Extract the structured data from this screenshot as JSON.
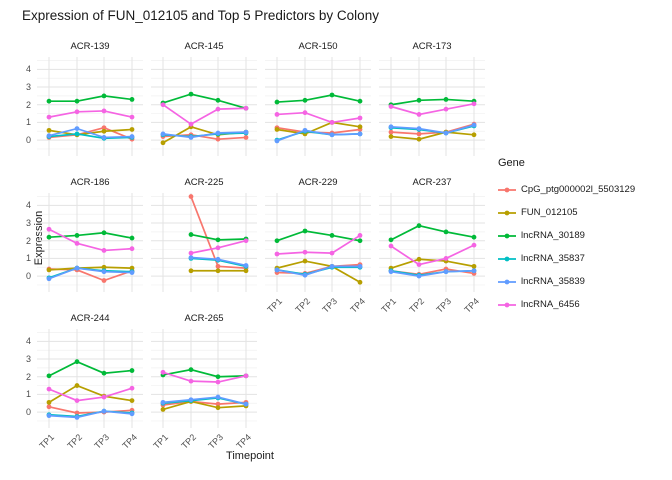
{
  "title": "Expression of FUN_012105 and Top 5 Predictors by Colony",
  "axes": {
    "x_title": "Timepoint",
    "y_title": "Expression",
    "x_ticks": [
      "TP1",
      "TP2",
      "TP3",
      "TP4"
    ],
    "y_ticks": [
      0,
      1,
      2,
      3,
      4
    ]
  },
  "legend": {
    "title": "Gene",
    "entries": [
      {
        "label": "CpG_ptg000002l_5503129",
        "color": "#F8766D"
      },
      {
        "label": "FUN_012105",
        "color": "#B79F00"
      },
      {
        "label": "lncRNA_30189",
        "color": "#00BA38"
      },
      {
        "label": "lncRNA_35837",
        "color": "#00BFC4"
      },
      {
        "label": "lncRNA_35839",
        "color": "#619CFF"
      },
      {
        "label": "lncRNA_6456",
        "color": "#F564E3"
      }
    ]
  },
  "chart_data": {
    "type": "line",
    "x": [
      "TP1",
      "TP2",
      "TP3",
      "TP4"
    ],
    "ylim": [
      -0.9,
      4.7
    ],
    "grid": true,
    "legend_position": "right",
    "facets": [
      {
        "name": "ACR-139",
        "series": [
          {
            "name": "CpG_ptg000002l_5503129",
            "values": [
              0.15,
              0.3,
              0.7,
              0.05
            ]
          },
          {
            "name": "FUN_012105",
            "values": [
              0.55,
              0.3,
              0.5,
              0.6
            ]
          },
          {
            "name": "lncRNA_30189",
            "values": [
              2.2,
              2.2,
              2.5,
              2.3
            ]
          },
          {
            "name": "lncRNA_35837",
            "values": [
              0.2,
              0.35,
              0.1,
              0.15
            ]
          },
          {
            "name": "lncRNA_35839",
            "values": [
              0.25,
              0.65,
              0.15,
              0.2
            ]
          },
          {
            "name": "lncRNA_6456",
            "values": [
              1.3,
              1.6,
              1.65,
              1.3
            ]
          }
        ]
      },
      {
        "name": "ACR-145",
        "series": [
          {
            "name": "CpG_ptg000002l_5503129",
            "values": [
              0.2,
              0.3,
              0.05,
              0.15
            ]
          },
          {
            "name": "FUN_012105",
            "values": [
              -0.15,
              0.75,
              0.3,
              0.45
            ]
          },
          {
            "name": "lncRNA_30189",
            "values": [
              2.1,
              2.6,
              2.25,
              1.8
            ]
          },
          {
            "name": "lncRNA_35837",
            "values": [
              0.3,
              0.2,
              0.35,
              0.4
            ]
          },
          {
            "name": "lncRNA_35839",
            "values": [
              0.35,
              0.15,
              0.4,
              0.45
            ]
          },
          {
            "name": "lncRNA_6456",
            "values": [
              2.0,
              0.9,
              1.75,
              1.8
            ]
          }
        ]
      },
      {
        "name": "ACR-150",
        "series": [
          {
            "name": "CpG_ptg000002l_5503129",
            "values": [
              0.7,
              0.45,
              0.4,
              0.6
            ]
          },
          {
            "name": "FUN_012105",
            "values": [
              0.6,
              0.35,
              1.0,
              0.75
            ]
          },
          {
            "name": "lncRNA_30189",
            "values": [
              2.15,
              2.25,
              2.55,
              2.2
            ]
          },
          {
            "name": "lncRNA_35837",
            "values": [
              0.0,
              0.5,
              0.3,
              0.35
            ]
          },
          {
            "name": "lncRNA_35839",
            "values": [
              -0.05,
              0.55,
              0.3,
              0.35
            ]
          },
          {
            "name": "lncRNA_6456",
            "values": [
              1.45,
              1.55,
              1.0,
              1.25
            ]
          }
        ]
      },
      {
        "name": "ACR-173",
        "series": [
          {
            "name": "CpG_ptg000002l_5503129",
            "values": [
              0.45,
              0.35,
              0.45,
              0.9
            ]
          },
          {
            "name": "FUN_012105",
            "values": [
              0.2,
              0.05,
              0.45,
              0.3
            ]
          },
          {
            "name": "lncRNA_30189",
            "values": [
              2.0,
              2.25,
              2.3,
              2.2
            ]
          },
          {
            "name": "lncRNA_35837",
            "values": [
              0.7,
              0.6,
              0.4,
              0.8
            ]
          },
          {
            "name": "lncRNA_35839",
            "values": [
              0.75,
              0.65,
              0.4,
              0.85
            ]
          },
          {
            "name": "lncRNA_6456",
            "values": [
              1.9,
              1.45,
              1.75,
              2.05
            ]
          }
        ]
      },
      {
        "name": "ACR-186",
        "series": [
          {
            "name": "CpG_ptg000002l_5503129",
            "values": [
              0.4,
              0.35,
              -0.25,
              0.3
            ]
          },
          {
            "name": "FUN_012105",
            "values": [
              0.35,
              0.45,
              0.5,
              0.45
            ]
          },
          {
            "name": "lncRNA_30189",
            "values": [
              2.2,
              2.3,
              2.45,
              2.15
            ]
          },
          {
            "name": "lncRNA_35837",
            "values": [
              -0.1,
              0.45,
              0.3,
              0.25
            ]
          },
          {
            "name": "lncRNA_35839",
            "values": [
              -0.15,
              0.45,
              0.25,
              0.2
            ]
          },
          {
            "name": "lncRNA_6456",
            "values": [
              2.65,
              1.85,
              1.45,
              1.55
            ]
          }
        ]
      },
      {
        "name": "ACR-225",
        "series": [
          {
            "name": "CpG_ptg000002l_5503129",
            "values": [
              null,
              4.5,
              0.55,
              0.45
            ]
          },
          {
            "name": "FUN_012105",
            "values": [
              null,
              0.3,
              0.3,
              0.3
            ]
          },
          {
            "name": "lncRNA_30189",
            "values": [
              null,
              2.35,
              2.05,
              2.1
            ]
          },
          {
            "name": "lncRNA_35837",
            "values": [
              null,
              1.0,
              0.9,
              0.55
            ]
          },
          {
            "name": "lncRNA_35839",
            "values": [
              null,
              1.05,
              0.95,
              0.6
            ]
          },
          {
            "name": "lncRNA_6456",
            "values": [
              null,
              1.3,
              1.6,
              2.0
            ]
          }
        ]
      },
      {
        "name": "ACR-229",
        "series": [
          {
            "name": "CpG_ptg000002l_5503129",
            "values": [
              0.2,
              0.15,
              0.55,
              0.65
            ]
          },
          {
            "name": "FUN_012105",
            "values": [
              0.45,
              0.85,
              0.55,
              -0.35
            ]
          },
          {
            "name": "lncRNA_30189",
            "values": [
              2.0,
              2.55,
              2.3,
              2.0
            ]
          },
          {
            "name": "lncRNA_35837",
            "values": [
              0.35,
              0.1,
              0.5,
              0.5
            ]
          },
          {
            "name": "lncRNA_35839",
            "values": [
              0.35,
              0.05,
              0.55,
              0.55
            ]
          },
          {
            "name": "lncRNA_6456",
            "values": [
              1.25,
              1.35,
              1.3,
              2.3
            ]
          }
        ]
      },
      {
        "name": "ACR-237",
        "series": [
          {
            "name": "CpG_ptg000002l_5503129",
            "values": [
              0.3,
              0.1,
              0.4,
              0.15
            ]
          },
          {
            "name": "FUN_012105",
            "values": [
              0.45,
              0.95,
              0.85,
              0.55
            ]
          },
          {
            "name": "lncRNA_30189",
            "values": [
              2.05,
              2.85,
              2.5,
              2.2
            ]
          },
          {
            "name": "lncRNA_35837",
            "values": [
              0.3,
              0.05,
              0.25,
              0.3
            ]
          },
          {
            "name": "lncRNA_35839",
            "values": [
              0.25,
              0.0,
              0.25,
              0.3
            ]
          },
          {
            "name": "lncRNA_6456",
            "values": [
              1.7,
              0.65,
              1.0,
              1.75
            ]
          }
        ]
      },
      {
        "name": "ACR-244",
        "series": [
          {
            "name": "CpG_ptg000002l_5503129",
            "values": [
              0.3,
              -0.05,
              0.0,
              0.1
            ]
          },
          {
            "name": "FUN_012105",
            "values": [
              0.55,
              1.5,
              0.9,
              0.65
            ]
          },
          {
            "name": "lncRNA_30189",
            "values": [
              2.05,
              2.85,
              2.2,
              2.35
            ]
          },
          {
            "name": "lncRNA_35837",
            "values": [
              -0.15,
              -0.25,
              0.05,
              -0.05
            ]
          },
          {
            "name": "lncRNA_35839",
            "values": [
              -0.2,
              -0.3,
              0.05,
              -0.1
            ]
          },
          {
            "name": "lncRNA_6456",
            "values": [
              1.3,
              0.65,
              0.85,
              1.35
            ]
          }
        ]
      },
      {
        "name": "ACR-265",
        "series": [
          {
            "name": "CpG_ptg000002l_5503129",
            "values": [
              0.4,
              0.6,
              0.45,
              0.55
            ]
          },
          {
            "name": "FUN_012105",
            "values": [
              0.15,
              0.6,
              0.25,
              0.35
            ]
          },
          {
            "name": "lncRNA_30189",
            "values": [
              2.1,
              2.4,
              2.0,
              2.05
            ]
          },
          {
            "name": "lncRNA_35837",
            "values": [
              0.5,
              0.65,
              0.8,
              0.45
            ]
          },
          {
            "name": "lncRNA_35839",
            "values": [
              0.55,
              0.7,
              0.85,
              0.45
            ]
          },
          {
            "name": "lncRNA_6456",
            "values": [
              2.25,
              1.75,
              1.7,
              2.05
            ]
          }
        ]
      }
    ]
  }
}
